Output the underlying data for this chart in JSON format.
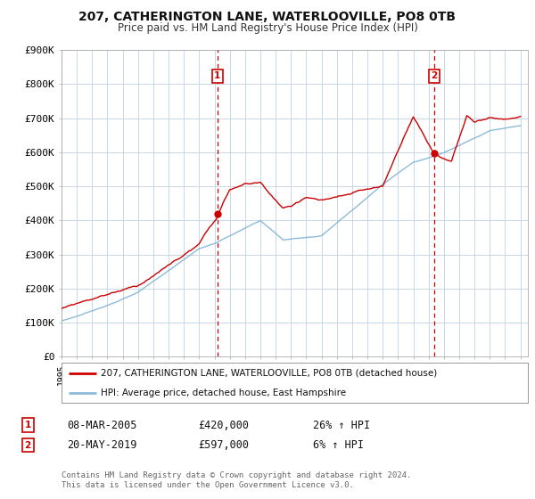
{
  "title": "207, CATHERINGTON LANE, WATERLOOVILLE, PO8 0TB",
  "subtitle": "Price paid vs. HM Land Registry's House Price Index (HPI)",
  "legend_line1": "207, CATHERINGTON LANE, WATERLOOVILLE, PO8 0TB (detached house)",
  "legend_line2": "HPI: Average price, detached house, East Hampshire",
  "transaction1_date": "08-MAR-2005",
  "transaction1_price": "£420,000",
  "transaction1_hpi": "26% ↑ HPI",
  "transaction1_year": 2005.18,
  "transaction1_value": 420000,
  "transaction2_date": "20-MAY-2019",
  "transaction2_price": "£597,000",
  "transaction2_hpi": "6% ↑ HPI",
  "transaction2_year": 2019.38,
  "transaction2_value": 597000,
  "vline1_year": 2005.18,
  "vline2_year": 2019.38,
  "hpi_color": "#7aafd4",
  "price_color": "#cc0000",
  "marker_color": "#cc0000",
  "vline_color": "#cc0000",
  "grid_color": "#c8d8e8",
  "background_color": "#ffffff",
  "plot_bg_color": "#ffffff",
  "ylim": [
    0,
    900000
  ],
  "xlim_start": 1995,
  "xlim_end": 2025.5,
  "footnote": "Contains HM Land Registry data © Crown copyright and database right 2024.\nThis data is licensed under the Open Government Licence v3.0."
}
